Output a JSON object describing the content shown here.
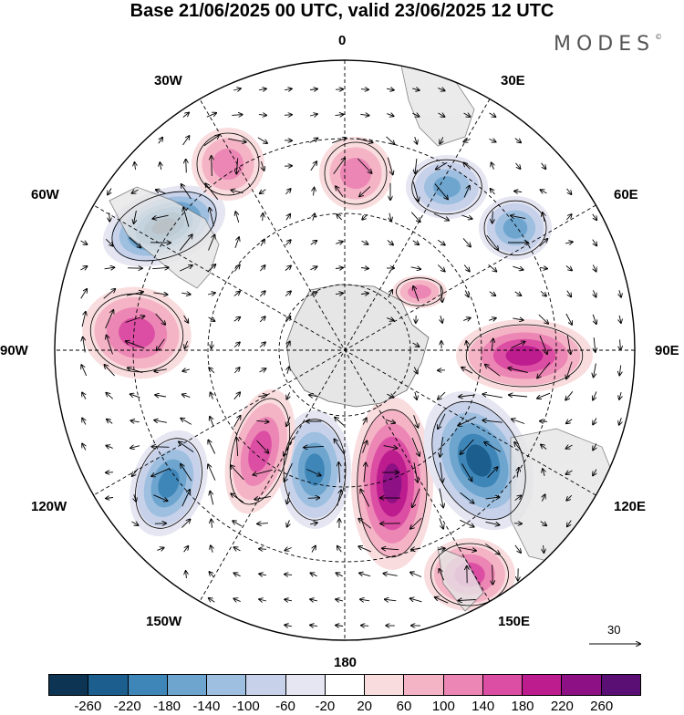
{
  "title": "Base 21/06/2025 00 UTC, valid 23/06/2025 12 UTC",
  "brand": "MODES",
  "brand_mark": "©",
  "longitude_labels": {
    "lon_0": "0",
    "lon_30e": "30E",
    "lon_60e": "60E",
    "lon_90e": "90E",
    "lon_120e": "120E",
    "lon_150e": "150E",
    "lon_180": "180",
    "lon_150w": "150W",
    "lon_120w": "120W",
    "lon_90w": "90W",
    "lon_60w": "60W",
    "lon_30w": "30W"
  },
  "vector_reference": {
    "label": "30"
  },
  "colorbar": {
    "colors": [
      "#0d3553",
      "#1c5f8f",
      "#3f86b8",
      "#6ea5cf",
      "#9ebfdf",
      "#c7d2ea",
      "#e6e6f2",
      "#ffffff",
      "#f9dcde",
      "#f4b4c6",
      "#ec86b4",
      "#dc4ea3",
      "#bc1c8e",
      "#8d1085",
      "#5a0f74"
    ],
    "ticks": [
      "-260",
      "-220",
      "-180",
      "-140",
      "-100",
      "-60",
      "-20",
      "20",
      "60",
      "100",
      "140",
      "180",
      "220",
      "260"
    ]
  },
  "map": {
    "projection": "south-polar-stereographic",
    "land_color": "#ececec",
    "anomaly_centers": [
      {
        "id": "c1",
        "sign": "neg",
        "level": -260
      },
      {
        "id": "c2",
        "sign": "pos",
        "level": 140
      },
      {
        "id": "c3",
        "sign": "neg",
        "level": -140
      },
      {
        "id": "c4",
        "sign": "pos",
        "level": 100
      },
      {
        "id": "c5",
        "sign": "neg",
        "level": -180
      },
      {
        "id": "c6",
        "sign": "neg",
        "level": -180
      },
      {
        "id": "c7",
        "sign": "pos",
        "level": 220
      },
      {
        "id": "c8",
        "sign": "pos",
        "level": 140
      },
      {
        "id": "c9",
        "sign": "neg",
        "level": -220
      },
      {
        "id": "c10",
        "sign": "pos",
        "level": 180
      },
      {
        "id": "c11",
        "sign": "pos",
        "level": 100
      },
      {
        "id": "c12",
        "sign": "pos",
        "level": 100
      },
      {
        "id": "c13",
        "sign": "neg",
        "level": -140
      },
      {
        "id": "c14",
        "sign": "pos",
        "level": 140
      }
    ]
  }
}
